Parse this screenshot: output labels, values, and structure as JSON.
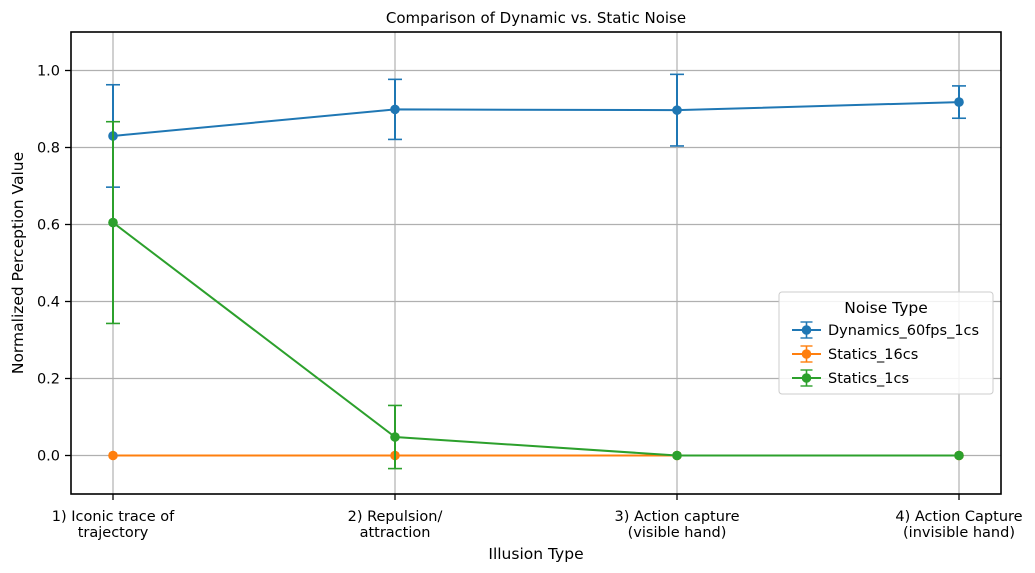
{
  "chart_data": {
    "type": "line",
    "title": "Comparison of Dynamic vs. Static Noise",
    "xlabel": "Illusion Type",
    "ylabel": "Normalized Perception Value",
    "categories": [
      [
        "1) Iconic trace of",
        "trajectory"
      ],
      [
        "2) Repulsion/",
        "attraction"
      ],
      [
        "3) Action capture",
        "(visible hand)"
      ],
      [
        "4) Action Capture",
        "(invisible hand)"
      ]
    ],
    "ylim": [
      -0.1,
      1.1
    ],
    "yticks": [
      0.0,
      0.2,
      0.4,
      0.6,
      0.8,
      1.0
    ],
    "ytick_labels": [
      "0.0",
      "0.2",
      "0.4",
      "0.6",
      "0.8",
      "1.0"
    ],
    "grid": true,
    "error_bars": true,
    "legend": {
      "title": "Noise Type",
      "position": "center-right"
    },
    "series": [
      {
        "name": "Dynamics_60fps_1cs",
        "color": "#1f77b4",
        "values": [
          0.83,
          0.899,
          0.897,
          0.918
        ],
        "errors": [
          0.133,
          0.078,
          0.093,
          0.042
        ]
      },
      {
        "name": "Statics_16cs",
        "color": "#ff7f0e",
        "values": [
          0.0,
          0.0,
          0.0,
          0.0
        ],
        "errors": [
          0,
          0,
          0,
          0
        ]
      },
      {
        "name": "Statics_1cs",
        "color": "#2ca02c",
        "values": [
          0.605,
          0.048,
          0.0,
          0.0
        ],
        "errors": [
          0.262,
          0.082,
          0,
          0
        ]
      }
    ]
  }
}
